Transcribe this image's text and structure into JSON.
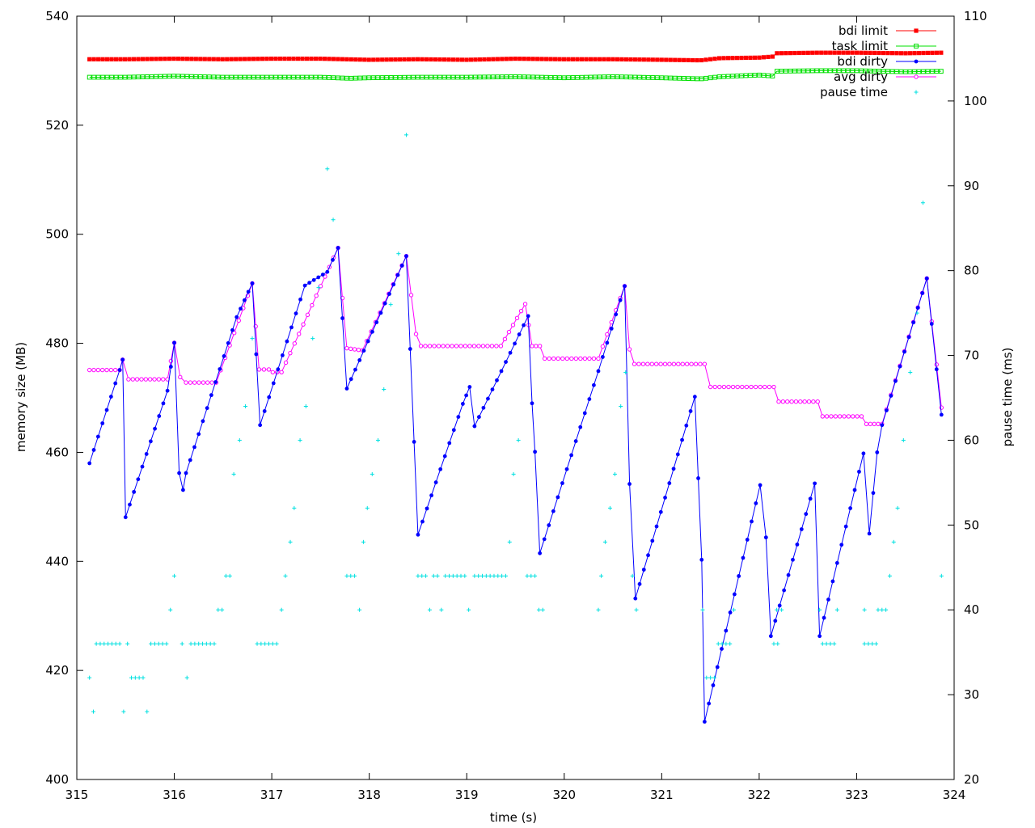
{
  "chart_data": {
    "type": "line",
    "title": "",
    "xlabel": "time (s)",
    "ylabel_left": "memory size (MB)",
    "ylabel_right": "pause time (ms)",
    "xlim": [
      315,
      324
    ],
    "ylim_left": [
      400,
      540
    ],
    "ylim_right": [
      20,
      110
    ],
    "xticks": [
      315,
      316,
      317,
      318,
      319,
      320,
      321,
      322,
      323,
      324
    ],
    "yticks_left": [
      400,
      420,
      440,
      460,
      480,
      500,
      520,
      540
    ],
    "yticks_right": [
      20,
      30,
      40,
      50,
      60,
      70,
      80,
      90,
      100,
      110
    ],
    "grid": false,
    "legend_position": "top-right",
    "legend": [
      "bdi limit",
      "task limit",
      "bdi dirty",
      "avg dirty",
      "pause time"
    ],
    "series": [
      {
        "name": "bdi limit",
        "axis": "left",
        "color": "#ff0000",
        "marker": "filled-square",
        "x_start": 315.13,
        "x_end": 323.87,
        "segments": [
          [
            315.13,
            532.1
          ],
          [
            315.5,
            532.1
          ],
          [
            316.0,
            532.2
          ],
          [
            316.5,
            532.1
          ],
          [
            317.0,
            532.2
          ],
          [
            317.5,
            532.2
          ],
          [
            318.0,
            532.0
          ],
          [
            318.5,
            532.1
          ],
          [
            319.0,
            532.0
          ],
          [
            319.5,
            532.2
          ],
          [
            320.0,
            532.1
          ],
          [
            320.5,
            532.1
          ],
          [
            321.0,
            532.0
          ],
          [
            321.4,
            531.9
          ],
          [
            321.6,
            532.3
          ],
          [
            322.0,
            532.4
          ],
          [
            322.15,
            532.6
          ],
          [
            322.17,
            533.2
          ],
          [
            322.6,
            533.3
          ],
          [
            323.0,
            533.3
          ],
          [
            323.5,
            533.2
          ],
          [
            323.87,
            533.3
          ]
        ]
      },
      {
        "name": "task limit",
        "axis": "left",
        "color": "#00e000",
        "marker": "open-square",
        "x_start": 315.13,
        "x_end": 323.87,
        "segments": [
          [
            315.13,
            528.8
          ],
          [
            315.5,
            528.8
          ],
          [
            316.0,
            529.0
          ],
          [
            316.5,
            528.8
          ],
          [
            317.0,
            528.8
          ],
          [
            317.5,
            528.8
          ],
          [
            317.8,
            528.6
          ],
          [
            318.0,
            528.7
          ],
          [
            318.5,
            528.8
          ],
          [
            319.0,
            528.8
          ],
          [
            319.5,
            528.9
          ],
          [
            320.0,
            528.7
          ],
          [
            320.5,
            528.9
          ],
          [
            321.0,
            528.7
          ],
          [
            321.4,
            528.5
          ],
          [
            321.6,
            528.9
          ],
          [
            322.0,
            529.2
          ],
          [
            322.15,
            529.0
          ],
          [
            322.17,
            529.9
          ],
          [
            322.6,
            530.0
          ],
          [
            323.0,
            530.0
          ],
          [
            323.5,
            529.8
          ],
          [
            323.87,
            529.9
          ]
        ]
      },
      {
        "name": "bdi dirty",
        "axis": "left",
        "color": "#0000ff",
        "marker": "filled-circle",
        "points": [
          [
            315.13,
            458.0
          ],
          [
            315.44,
            475.1
          ],
          [
            315.47,
            477.0
          ],
          [
            315.5,
            448.1
          ],
          [
            315.93,
            471.3
          ],
          [
            316.0,
            480.1
          ],
          [
            316.05,
            456.2
          ],
          [
            316.09,
            453.1
          ],
          [
            316.12,
            456.2
          ],
          [
            316.64,
            484.8
          ],
          [
            316.8,
            491.0
          ],
          [
            316.88,
            465.0
          ],
          [
            317.34,
            490.6
          ],
          [
            317.57,
            493.1
          ],
          [
            317.68,
            497.5
          ],
          [
            317.77,
            471.7
          ],
          [
            318.38,
            496.0
          ],
          [
            318.5,
            444.9
          ],
          [
            318.96,
            468.9
          ],
          [
            319.03,
            472.0
          ],
          [
            319.08,
            464.8
          ],
          [
            319.63,
            485.0
          ],
          [
            319.67,
            469.0
          ],
          [
            319.7,
            460.1
          ],
          [
            319.75,
            441.5
          ],
          [
            320.35,
            474.9
          ],
          [
            320.62,
            490.5
          ],
          [
            320.67,
            454.2
          ],
          [
            320.73,
            433.2
          ],
          [
            321.34,
            470.2
          ],
          [
            321.41,
            440.3
          ],
          [
            321.44,
            410.6
          ],
          [
            322.01,
            454.0
          ],
          [
            322.07,
            444.4
          ],
          [
            322.12,
            426.3
          ],
          [
            322.57,
            454.3
          ],
          [
            322.62,
            426.3
          ],
          [
            323.07,
            459.8
          ],
          [
            323.13,
            445.1
          ],
          [
            323.21,
            460.0
          ],
          [
            323.26,
            465.0
          ],
          [
            323.72,
            491.9
          ],
          [
            323.87,
            466.9
          ]
        ],
        "step_count": 6
      },
      {
        "name": "avg dirty",
        "axis": "left",
        "color": "#ff00ff",
        "marker": "open-circle",
        "points": [
          [
            315.13,
            475.1
          ],
          [
            315.44,
            475.1
          ],
          [
            315.47,
            477.0
          ],
          [
            315.53,
            473.4
          ],
          [
            315.93,
            473.4
          ],
          [
            316.0,
            480.1
          ],
          [
            316.06,
            473.8
          ],
          [
            316.12,
            472.8
          ],
          [
            316.43,
            472.8
          ],
          [
            316.8,
            491.0
          ],
          [
            316.87,
            475.2
          ],
          [
            316.97,
            475.2
          ],
          [
            317.01,
            474.7
          ],
          [
            317.1,
            474.7
          ],
          [
            317.68,
            497.5
          ],
          [
            317.77,
            479.1
          ],
          [
            317.93,
            478.7
          ],
          [
            318.38,
            496.0
          ],
          [
            318.48,
            481.7
          ],
          [
            318.53,
            479.5
          ],
          [
            319.35,
            479.5
          ],
          [
            319.6,
            487.2
          ],
          [
            319.67,
            479.5
          ],
          [
            319.75,
            479.5
          ],
          [
            319.8,
            477.2
          ],
          [
            320.35,
            477.2
          ],
          [
            320.62,
            490.5
          ],
          [
            320.67,
            478.9
          ],
          [
            320.72,
            476.2
          ],
          [
            321.44,
            476.2
          ],
          [
            321.5,
            472.0
          ],
          [
            322.15,
            472.0
          ],
          [
            322.2,
            469.3
          ],
          [
            322.6,
            469.3
          ],
          [
            322.65,
            466.6
          ],
          [
            323.05,
            466.6
          ],
          [
            323.1,
            465.2
          ],
          [
            323.26,
            465.2
          ],
          [
            323.72,
            491.9
          ],
          [
            323.87,
            468.2
          ]
        ],
        "step_count": 6
      },
      {
        "name": "pause time",
        "axis": "right",
        "color": "#00e0e0",
        "marker": "plus",
        "points": [
          [
            315.13,
            32
          ],
          [
            315.17,
            28
          ],
          [
            315.2,
            36
          ],
          [
            315.24,
            36
          ],
          [
            315.28,
            36
          ],
          [
            315.32,
            36
          ],
          [
            315.36,
            36
          ],
          [
            315.4,
            36
          ],
          [
            315.44,
            36
          ],
          [
            315.48,
            28
          ],
          [
            315.52,
            36
          ],
          [
            315.56,
            32
          ],
          [
            315.6,
            32
          ],
          [
            315.64,
            32
          ],
          [
            315.68,
            32
          ],
          [
            315.72,
            28
          ],
          [
            315.76,
            36
          ],
          [
            315.8,
            36
          ],
          [
            315.84,
            36
          ],
          [
            315.88,
            36
          ],
          [
            315.92,
            36
          ],
          [
            315.96,
            40
          ],
          [
            316.0,
            44
          ],
          [
            316.08,
            36
          ],
          [
            316.13,
            32
          ],
          [
            316.17,
            36
          ],
          [
            316.21,
            36
          ],
          [
            316.25,
            36
          ],
          [
            316.29,
            36
          ],
          [
            316.33,
            36
          ],
          [
            316.37,
            36
          ],
          [
            316.41,
            36
          ],
          [
            316.45,
            40
          ],
          [
            316.49,
            40
          ],
          [
            316.53,
            44
          ],
          [
            316.57,
            44
          ],
          [
            316.61,
            56
          ],
          [
            316.67,
            60
          ],
          [
            316.73,
            64
          ],
          [
            316.8,
            72
          ],
          [
            316.85,
            36
          ],
          [
            316.89,
            36
          ],
          [
            316.93,
            36
          ],
          [
            316.97,
            36
          ],
          [
            317.01,
            36
          ],
          [
            317.05,
            36
          ],
          [
            317.1,
            40
          ],
          [
            317.14,
            44
          ],
          [
            317.19,
            48
          ],
          [
            317.23,
            52
          ],
          [
            317.29,
            60
          ],
          [
            317.35,
            64
          ],
          [
            317.42,
            72
          ],
          [
            317.48,
            78
          ],
          [
            317.57,
            92
          ],
          [
            317.63,
            86
          ],
          [
            317.77,
            44
          ],
          [
            317.81,
            44
          ],
          [
            317.85,
            44
          ],
          [
            317.9,
            40
          ],
          [
            317.94,
            48
          ],
          [
            317.98,
            52
          ],
          [
            318.03,
            56
          ],
          [
            318.09,
            60
          ],
          [
            318.15,
            66
          ],
          [
            318.22,
            76
          ],
          [
            318.3,
            82
          ],
          [
            318.38,
            96
          ],
          [
            318.5,
            44
          ],
          [
            318.54,
            44
          ],
          [
            318.58,
            44
          ],
          [
            318.62,
            40
          ],
          [
            318.66,
            44
          ],
          [
            318.7,
            44
          ],
          [
            318.74,
            40
          ],
          [
            318.78,
            44
          ],
          [
            318.82,
            44
          ],
          [
            318.86,
            44
          ],
          [
            318.9,
            44
          ],
          [
            318.94,
            44
          ],
          [
            318.98,
            44
          ],
          [
            319.02,
            40
          ],
          [
            319.08,
            44
          ],
          [
            319.12,
            44
          ],
          [
            319.16,
            44
          ],
          [
            319.2,
            44
          ],
          [
            319.24,
            44
          ],
          [
            319.28,
            44
          ],
          [
            319.32,
            44
          ],
          [
            319.36,
            44
          ],
          [
            319.4,
            44
          ],
          [
            319.44,
            48
          ],
          [
            319.48,
            56
          ],
          [
            319.53,
            60
          ],
          [
            319.62,
            44
          ],
          [
            319.66,
            44
          ],
          [
            319.7,
            44
          ],
          [
            319.74,
            40
          ],
          [
            319.78,
            40
          ],
          [
            320.35,
            40
          ],
          [
            320.38,
            44
          ],
          [
            320.42,
            48
          ],
          [
            320.47,
            52
          ],
          [
            320.52,
            56
          ],
          [
            320.58,
            64
          ],
          [
            320.63,
            68
          ],
          [
            320.7,
            44
          ],
          [
            320.74,
            40
          ],
          [
            321.42,
            40
          ],
          [
            321.46,
            32
          ],
          [
            321.5,
            32
          ],
          [
            321.54,
            32
          ],
          [
            321.58,
            36
          ],
          [
            321.62,
            36
          ],
          [
            321.66,
            36
          ],
          [
            321.7,
            36
          ],
          [
            321.74,
            40
          ],
          [
            322.18,
            40
          ],
          [
            322.15,
            36
          ],
          [
            322.19,
            36
          ],
          [
            322.23,
            40
          ],
          [
            322.62,
            40
          ],
          [
            322.65,
            36
          ],
          [
            322.69,
            36
          ],
          [
            322.73,
            36
          ],
          [
            322.77,
            36
          ],
          [
            322.8,
            40
          ],
          [
            323.08,
            40
          ],
          [
            323.08,
            36
          ],
          [
            323.12,
            36
          ],
          [
            323.16,
            36
          ],
          [
            323.2,
            36
          ],
          [
            323.22,
            40
          ],
          [
            323.26,
            40
          ],
          [
            323.3,
            40
          ],
          [
            323.34,
            44
          ],
          [
            323.38,
            48
          ],
          [
            323.42,
            52
          ],
          [
            323.48,
            60
          ],
          [
            323.55,
            68
          ],
          [
            323.62,
            75
          ],
          [
            323.68,
            88
          ],
          [
            323.87,
            44
          ]
        ]
      }
    ]
  }
}
